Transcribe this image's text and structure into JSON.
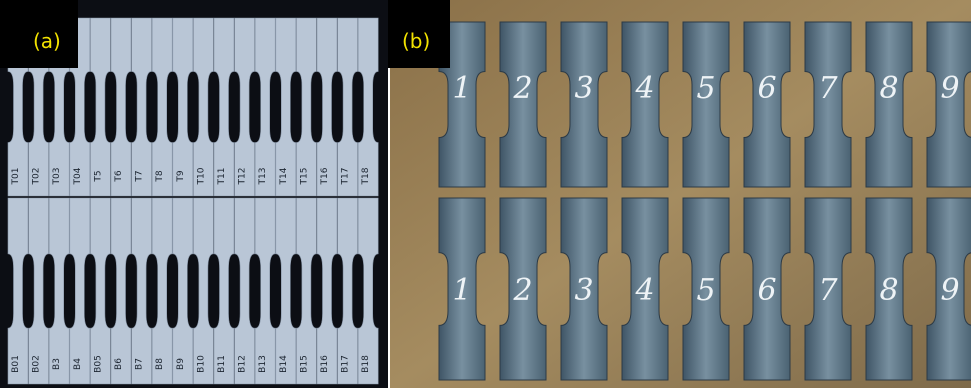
{
  "panels": [
    {
      "label": "(a)",
      "top_row": [
        "T01",
        "T02",
        "T03",
        "T04",
        "T5",
        "T6",
        "T7",
        "T8",
        "T9",
        "T10",
        "T11",
        "T12",
        "T13",
        "T14",
        "T15",
        "T16",
        "T17",
        "T18"
      ],
      "bottom_row": [
        "B01",
        "B02",
        "B3",
        "B4",
        "B05",
        "B6",
        "B7",
        "B8",
        "B9",
        "B10",
        "B11",
        "B12",
        "B13",
        "B14",
        "B15",
        "B16",
        "B17",
        "B18"
      ]
    },
    {
      "label": "(b)",
      "top_row": [
        "1",
        "2",
        "3",
        "4",
        "5",
        "6",
        "7",
        "8",
        "9"
      ],
      "bottom_row": [
        "1",
        "2",
        "3",
        "4",
        "5",
        "6",
        "7",
        "8",
        "9"
      ]
    }
  ]
}
